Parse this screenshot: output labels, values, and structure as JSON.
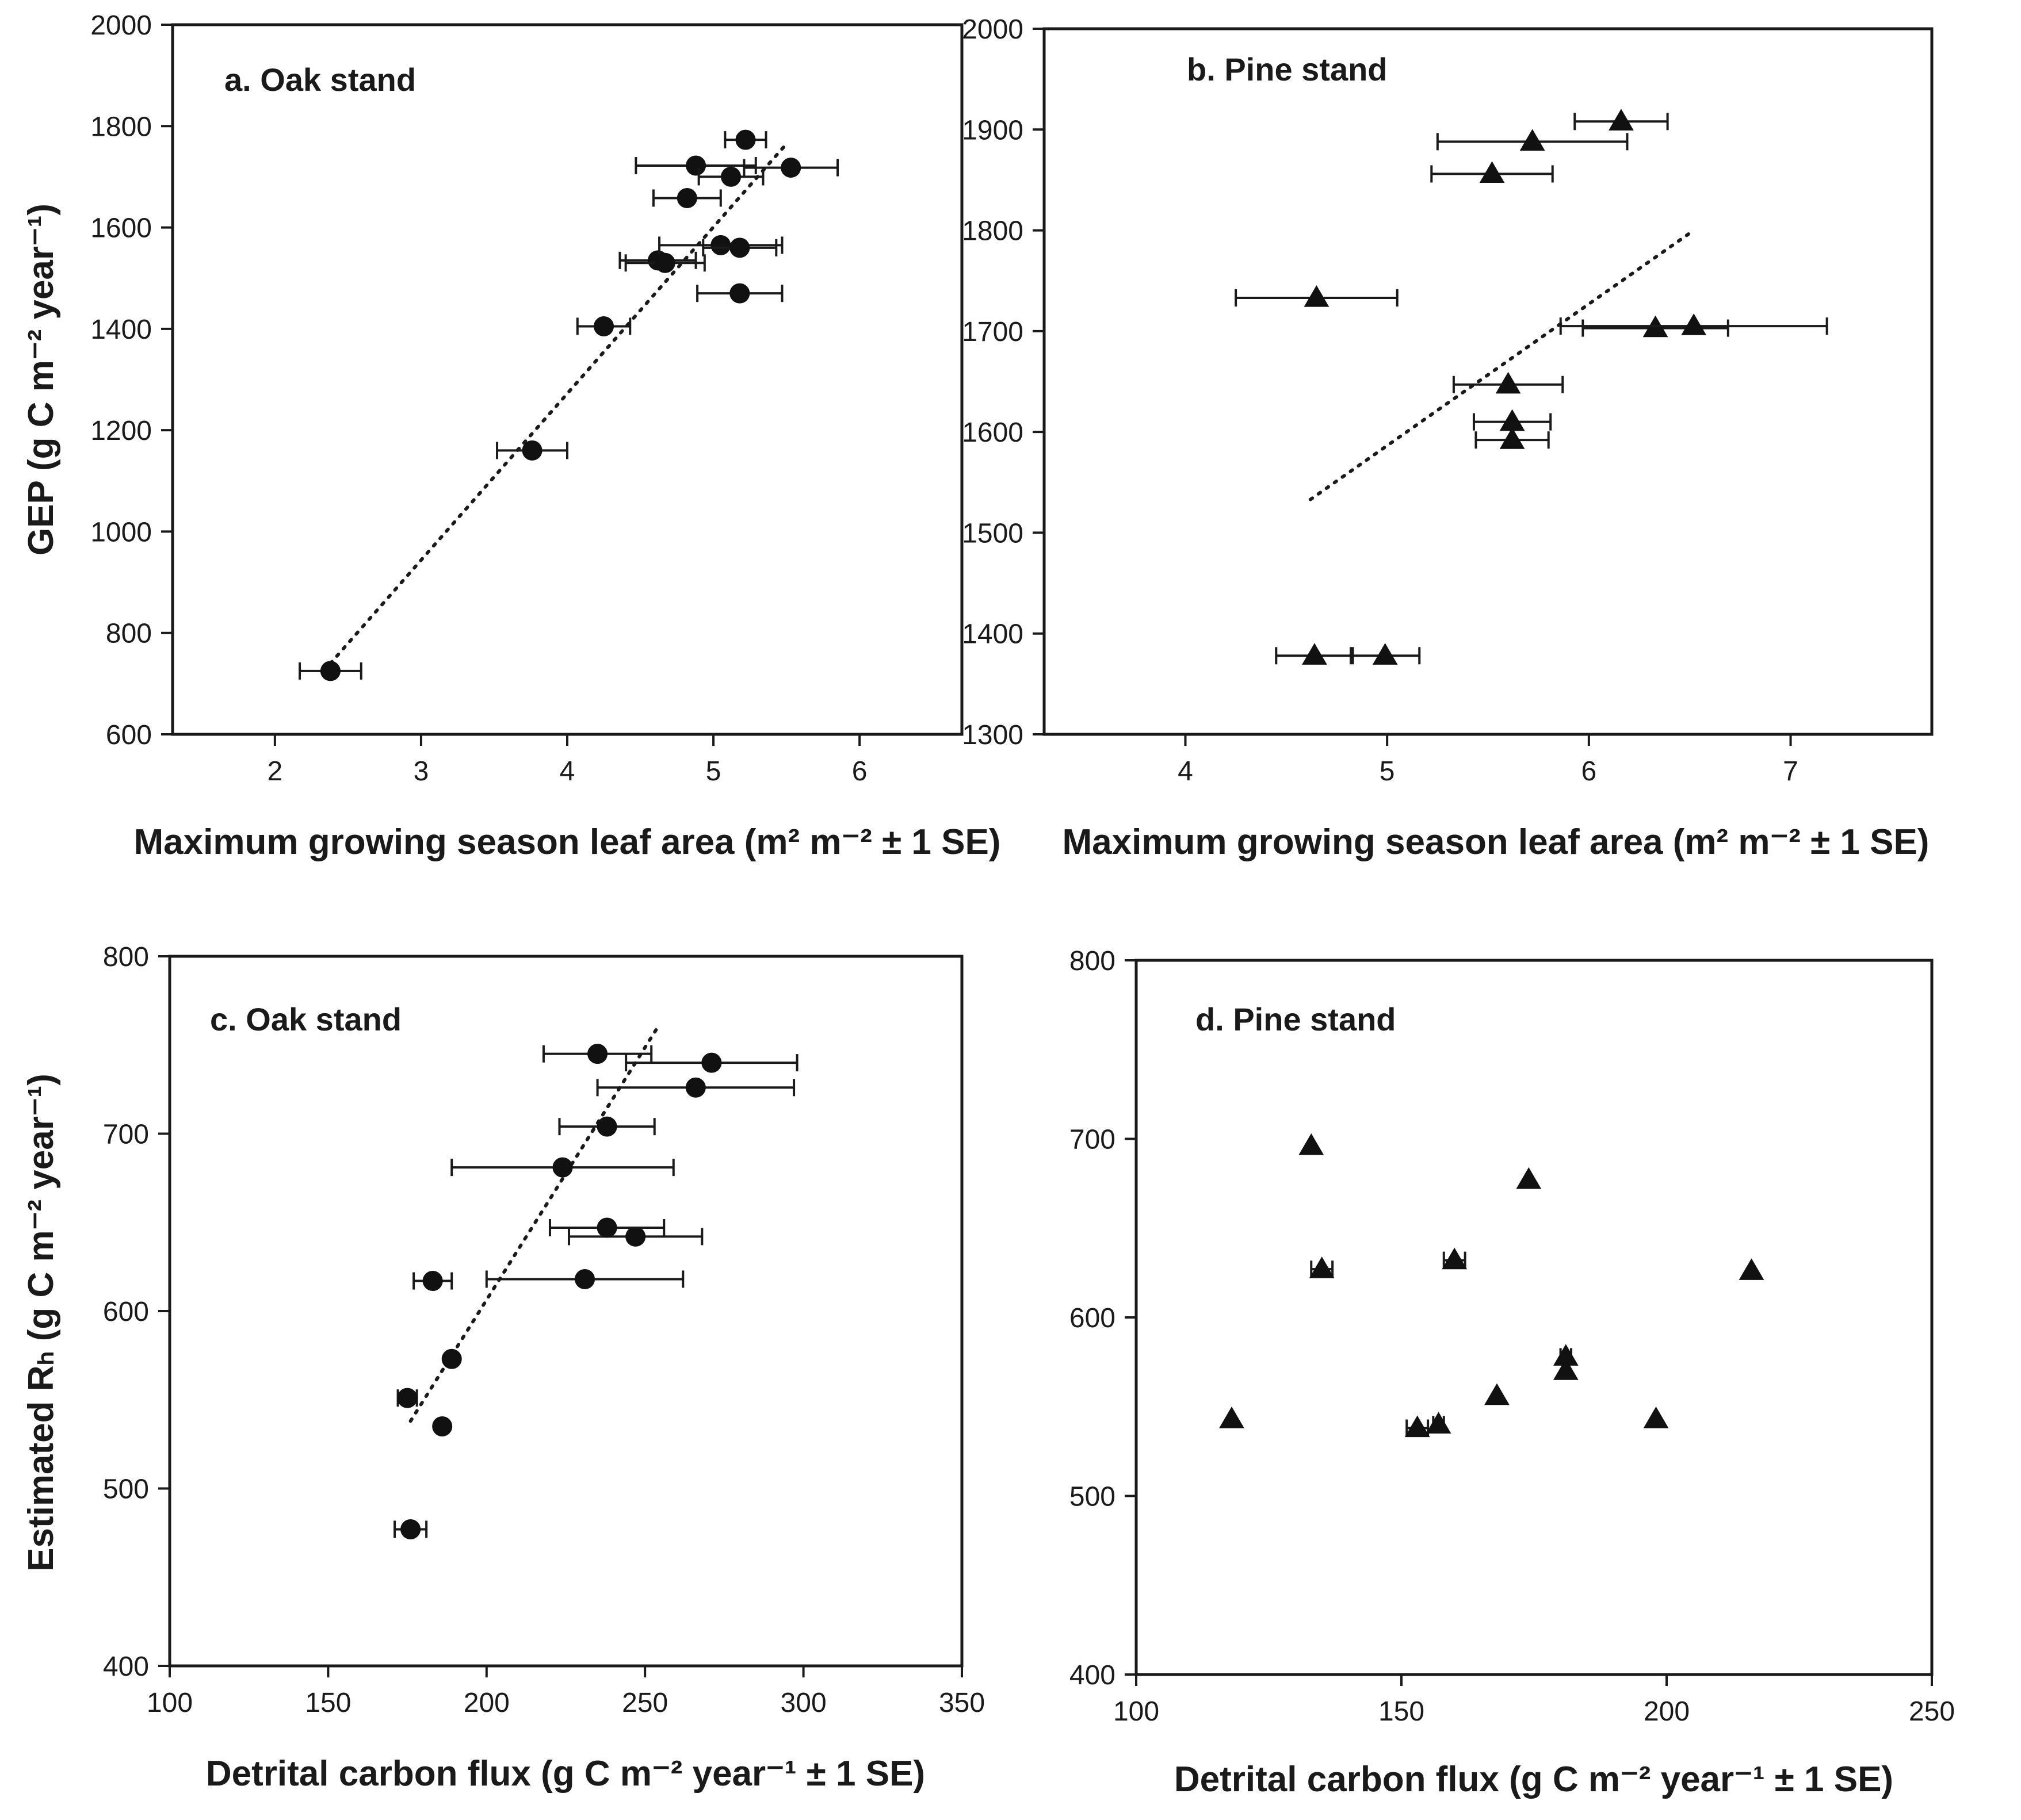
{
  "chart_data": [
    {
      "type": "scatter",
      "id": "a",
      "title": "a. Oak stand",
      "xlabel": "Maximum growing season leaf area (m² m⁻² ± 1 SE)",
      "ylabel": "GEP (g C m⁻² year⁻¹)",
      "xlim": [
        1.3,
        6.7
      ],
      "ylim": [
        600,
        2000
      ],
      "xticks": [
        2,
        3,
        4,
        5,
        6
      ],
      "yticks": [
        600,
        800,
        1000,
        1200,
        1400,
        1600,
        1800,
        2000
      ],
      "marker": "circle",
      "grid": false,
      "points": [
        {
          "x": 2.38,
          "y": 725,
          "xerr": 0.21
        },
        {
          "x": 3.76,
          "y": 1160,
          "xerr": 0.24
        },
        {
          "x": 4.25,
          "y": 1405,
          "xerr": 0.18
        },
        {
          "x": 4.62,
          "y": 1535,
          "xerr": 0.26
        },
        {
          "x": 4.67,
          "y": 1530,
          "xerr": 0.27
        },
        {
          "x": 4.82,
          "y": 1658,
          "xerr": 0.23
        },
        {
          "x": 4.88,
          "y": 1722,
          "xerr": 0.41
        },
        {
          "x": 5.05,
          "y": 1565,
          "xerr": 0.42
        },
        {
          "x": 5.12,
          "y": 1700,
          "xerr": 0.22
        },
        {
          "x": 5.18,
          "y": 1470,
          "xerr": 0.29
        },
        {
          "x": 5.18,
          "y": 1560,
          "xerr": 0.25
        },
        {
          "x": 5.22,
          "y": 1773,
          "xerr": 0.14
        },
        {
          "x": 5.53,
          "y": 1718,
          "xerr": 0.32
        }
      ],
      "trendline": {
        "x": [
          2.38,
          5.5
        ],
        "y": [
          740,
          1765
        ]
      }
    },
    {
      "type": "scatter",
      "id": "b",
      "title": "b. Pine stand",
      "xlabel": "Maximum growing season leaf area (m² m⁻² ± 1 SE)",
      "ylabel": "",
      "xlim": [
        3.3,
        7.7
      ],
      "ylim": [
        1300,
        2000
      ],
      "xticks": [
        4,
        5,
        6,
        7
      ],
      "yticks": [
        1300,
        1400,
        1500,
        1600,
        1700,
        1800,
        1900,
        2000
      ],
      "marker": "triangle",
      "grid": false,
      "points": [
        {
          "x": 4.64,
          "y": 1378,
          "xerr": 0.19
        },
        {
          "x": 4.99,
          "y": 1378,
          "xerr": 0.17
        },
        {
          "x": 4.65,
          "y": 1733,
          "xerr": 0.4
        },
        {
          "x": 5.52,
          "y": 1856,
          "xerr": 0.3
        },
        {
          "x": 5.6,
          "y": 1647,
          "xerr": 0.27
        },
        {
          "x": 5.62,
          "y": 1610,
          "xerr": 0.19
        },
        {
          "x": 5.62,
          "y": 1592,
          "xerr": 0.18
        },
        {
          "x": 5.72,
          "y": 1888,
          "xerr": 0.47
        },
        {
          "x": 6.16,
          "y": 1908,
          "xerr": 0.23
        },
        {
          "x": 6.33,
          "y": 1703,
          "xerr": 0.36
        },
        {
          "x": 6.52,
          "y": 1705,
          "xerr": 0.66
        }
      ],
      "trendline": {
        "x": [
          4.62,
          6.52
        ],
        "y": [
          1533,
          1800
        ]
      }
    },
    {
      "type": "scatter",
      "id": "c",
      "title": "c. Oak stand",
      "xlabel": "Detrital carbon flux (g C m⁻² year⁻¹ ± 1 SE)",
      "ylabel": "Estimated Rₕ (g C m⁻² year⁻¹)",
      "xlim": [
        100,
        350
      ],
      "ylim": [
        400,
        800
      ],
      "xticks": [
        100,
        150,
        200,
        250,
        300,
        350
      ],
      "yticks": [
        400,
        500,
        600,
        700,
        800
      ],
      "marker": "circle",
      "grid": false,
      "points": [
        {
          "x": 176,
          "y": 477,
          "xerr": 5
        },
        {
          "x": 186,
          "y": 535,
          "xerr": 0
        },
        {
          "x": 175,
          "y": 551,
          "xerr": 3
        },
        {
          "x": 189,
          "y": 573,
          "xerr": 0
        },
        {
          "x": 183,
          "y": 617,
          "xerr": 6
        },
        {
          "x": 231,
          "y": 618,
          "xerr": 31
        },
        {
          "x": 247,
          "y": 642,
          "xerr": 21
        },
        {
          "x": 238,
          "y": 647,
          "xerr": 18
        },
        {
          "x": 224,
          "y": 681,
          "xerr": 35
        },
        {
          "x": 238,
          "y": 704,
          "xerr": 15
        },
        {
          "x": 266,
          "y": 726,
          "xerr": 31
        },
        {
          "x": 271,
          "y": 740,
          "xerr": 27
        },
        {
          "x": 235,
          "y": 745,
          "xerr": 17
        }
      ],
      "trendline": {
        "x": [
          176,
          254
        ],
        "y": [
          538,
          760
        ]
      }
    },
    {
      "type": "scatter",
      "id": "d",
      "title": "d. Pine stand",
      "xlabel": "Detrital carbon flux (g C m⁻² year⁻¹ ± 1 SE)",
      "ylabel": "",
      "xlim": [
        100,
        250
      ],
      "ylim": [
        400,
        800
      ],
      "xticks": [
        100,
        150,
        200,
        250
      ],
      "yticks": [
        400,
        500,
        600,
        700,
        800
      ],
      "marker": "triangle",
      "grid": false,
      "points": [
        {
          "x": 118,
          "y": 543,
          "xerr": 0
        },
        {
          "x": 133,
          "y": 696,
          "xerr": 0
        },
        {
          "x": 135,
          "y": 627,
          "xerr": 2
        },
        {
          "x": 153,
          "y": 538,
          "xerr": 2
        },
        {
          "x": 157,
          "y": 540,
          "xerr": 1
        },
        {
          "x": 160,
          "y": 632,
          "xerr": 2
        },
        {
          "x": 168,
          "y": 556,
          "xerr": 0
        },
        {
          "x": 174,
          "y": 677,
          "xerr": 0
        },
        {
          "x": 181,
          "y": 578,
          "xerr": 1
        },
        {
          "x": 181,
          "y": 570,
          "xerr": 0
        },
        {
          "x": 198,
          "y": 543,
          "xerr": 0
        },
        {
          "x": 216,
          "y": 626,
          "xerr": 0
        }
      ],
      "trendline": null
    }
  ]
}
